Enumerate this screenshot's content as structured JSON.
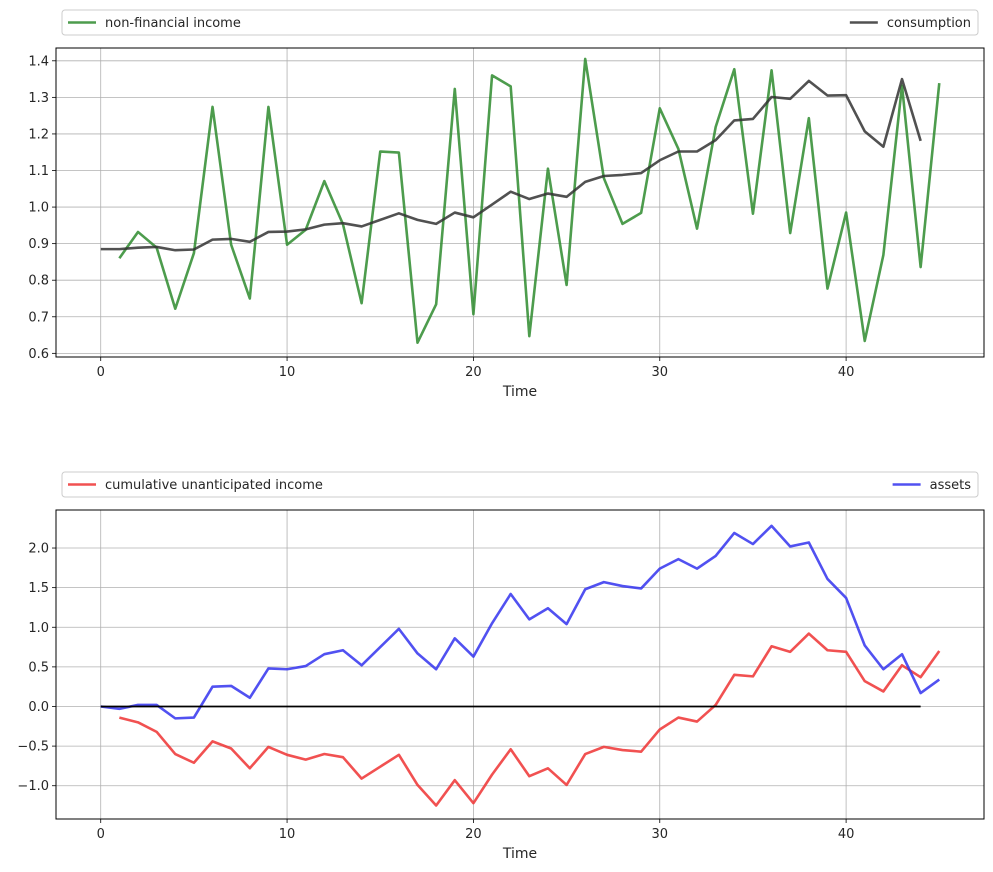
{
  "chart_data": [
    {
      "type": "line",
      "xlabel": "Time",
      "xlim": [
        -2.4,
        47.4
      ],
      "ylim": [
        0.59,
        1.435
      ],
      "xticks": [
        0,
        10,
        20,
        30,
        40
      ],
      "yticks": [
        0.6,
        0.7,
        0.8,
        0.9,
        1.0,
        1.1,
        1.2,
        1.3,
        1.4
      ],
      "ytick_labels": [
        "0.6",
        "0.7",
        "0.8",
        "0.9",
        "1.0",
        "1.1",
        "1.2",
        "1.3",
        "1.4"
      ],
      "grid": true,
      "legend_placement": "above plot, expanded across full width",
      "series": [
        {
          "name": "non-financial income",
          "color": "#2e8b2e",
          "x": [
            1,
            2,
            3,
            4,
            5,
            6,
            7,
            8,
            9,
            10,
            11,
            12,
            13,
            14,
            15,
            16,
            17,
            18,
            19,
            20,
            21,
            22,
            23,
            24,
            25,
            26,
            27,
            28,
            29,
            30,
            31,
            32,
            33,
            34,
            35,
            36,
            37,
            38,
            39,
            40,
            41,
            42,
            43,
            44,
            45
          ],
          "values": [
            0.86,
            0.932,
            0.889,
            0.722,
            0.874,
            1.274,
            0.897,
            0.75,
            1.274,
            0.897,
            0.938,
            1.071,
            0.953,
            0.737,
            1.152,
            1.149,
            0.629,
            0.734,
            1.323,
            0.707,
            1.36,
            1.33,
            0.647,
            1.105,
            0.787,
            1.405,
            1.079,
            0.954,
            0.984,
            1.27,
            1.159,
            0.941,
            1.219,
            1.377,
            0.982,
            1.374,
            0.929,
            1.243,
            0.777,
            0.985,
            0.634,
            0.869,
            1.332,
            0.836,
            1.339
          ]
        },
        {
          "name": "consumption",
          "color": "#333333",
          "x": [
            0,
            1,
            2,
            3,
            4,
            5,
            6,
            7,
            8,
            9,
            10,
            11,
            12,
            13,
            14,
            15,
            16,
            17,
            18,
            19,
            20,
            21,
            22,
            23,
            24,
            25,
            26,
            27,
            28,
            29,
            30,
            31,
            32,
            33,
            34,
            35,
            36,
            37,
            38,
            39,
            40,
            41,
            42,
            43,
            44
          ],
          "values": [
            0.885,
            0.885,
            0.889,
            0.891,
            0.882,
            0.884,
            0.911,
            0.913,
            0.905,
            0.932,
            0.933,
            0.939,
            0.952,
            0.956,
            0.947,
            0.965,
            0.983,
            0.965,
            0.954,
            0.985,
            0.972,
            1.007,
            1.042,
            1.022,
            1.037,
            1.028,
            1.069,
            1.085,
            1.088,
            1.093,
            1.128,
            1.152,
            1.152,
            1.183,
            1.237,
            1.241,
            1.301,
            1.296,
            1.345,
            1.305,
            1.306,
            1.207,
            1.165,
            1.35,
            1.181
          ]
        }
      ]
    },
    {
      "type": "line",
      "xlabel": "Time",
      "xlim": [
        -2.4,
        47.4
      ],
      "ylim": [
        -1.42,
        2.48
      ],
      "xticks": [
        0,
        10,
        20,
        30,
        40
      ],
      "yticks": [
        -1.0,
        -0.5,
        0.0,
        0.5,
        1.0,
        1.5,
        2.0
      ],
      "ytick_labels": [
        "−1.0",
        "−0.5",
        "0.0",
        "0.5",
        "1.0",
        "1.5",
        "2.0"
      ],
      "grid": true,
      "legend_placement": "above plot, expanded across full width",
      "series": [
        {
          "name": "cumulative unanticipated income",
          "color": "#ee3333",
          "x": [
            1,
            2,
            3,
            4,
            5,
            6,
            7,
            8,
            9,
            10,
            11,
            12,
            13,
            14,
            15,
            16,
            17,
            18,
            19,
            20,
            21,
            22,
            23,
            24,
            25,
            26,
            27,
            28,
            29,
            30,
            31,
            32,
            33,
            34,
            35,
            36,
            37,
            38,
            39,
            40,
            41,
            42,
            43,
            44,
            45
          ],
          "values": [
            -0.14,
            -0.2,
            -0.32,
            -0.6,
            -0.71,
            -0.44,
            -0.53,
            -0.78,
            -0.51,
            -0.61,
            -0.67,
            -0.6,
            -0.64,
            -0.91,
            -0.76,
            -0.61,
            -0.99,
            -1.25,
            -0.93,
            -1.22,
            -0.86,
            -0.54,
            -0.88,
            -0.78,
            -0.99,
            -0.6,
            -0.51,
            -0.55,
            -0.57,
            -0.29,
            -0.14,
            -0.19,
            0.02,
            0.4,
            0.38,
            0.76,
            0.69,
            0.92,
            0.71,
            0.69,
            0.32,
            0.19,
            0.52,
            0.37,
            0.7
          ]
        },
        {
          "name": "assets",
          "color": "#3333ee",
          "x": [
            0,
            1,
            2,
            3,
            4,
            5,
            6,
            7,
            8,
            9,
            10,
            11,
            12,
            13,
            14,
            15,
            16,
            17,
            18,
            19,
            20,
            21,
            22,
            23,
            24,
            25,
            26,
            27,
            28,
            29,
            30,
            31,
            32,
            33,
            34,
            35,
            36,
            37,
            38,
            39,
            40,
            41,
            42,
            43,
            44,
            45
          ],
          "values": [
            0.0,
            -0.03,
            0.02,
            0.02,
            -0.15,
            -0.14,
            0.25,
            0.26,
            0.11,
            0.48,
            0.47,
            0.51,
            0.66,
            0.71,
            0.52,
            0.75,
            0.98,
            0.67,
            0.47,
            0.86,
            0.63,
            1.05,
            1.42,
            1.1,
            1.24,
            1.04,
            1.48,
            1.57,
            1.52,
            1.49,
            1.74,
            1.86,
            1.74,
            1.9,
            2.19,
            2.05,
            2.28,
            2.02,
            2.07,
            1.61,
            1.37,
            0.77,
            0.47,
            0.66,
            0.17,
            0.34
          ]
        },
        {
          "name": "",
          "color": "#000000",
          "x": [
            0,
            44
          ],
          "values": [
            0,
            0
          ]
        }
      ]
    }
  ]
}
